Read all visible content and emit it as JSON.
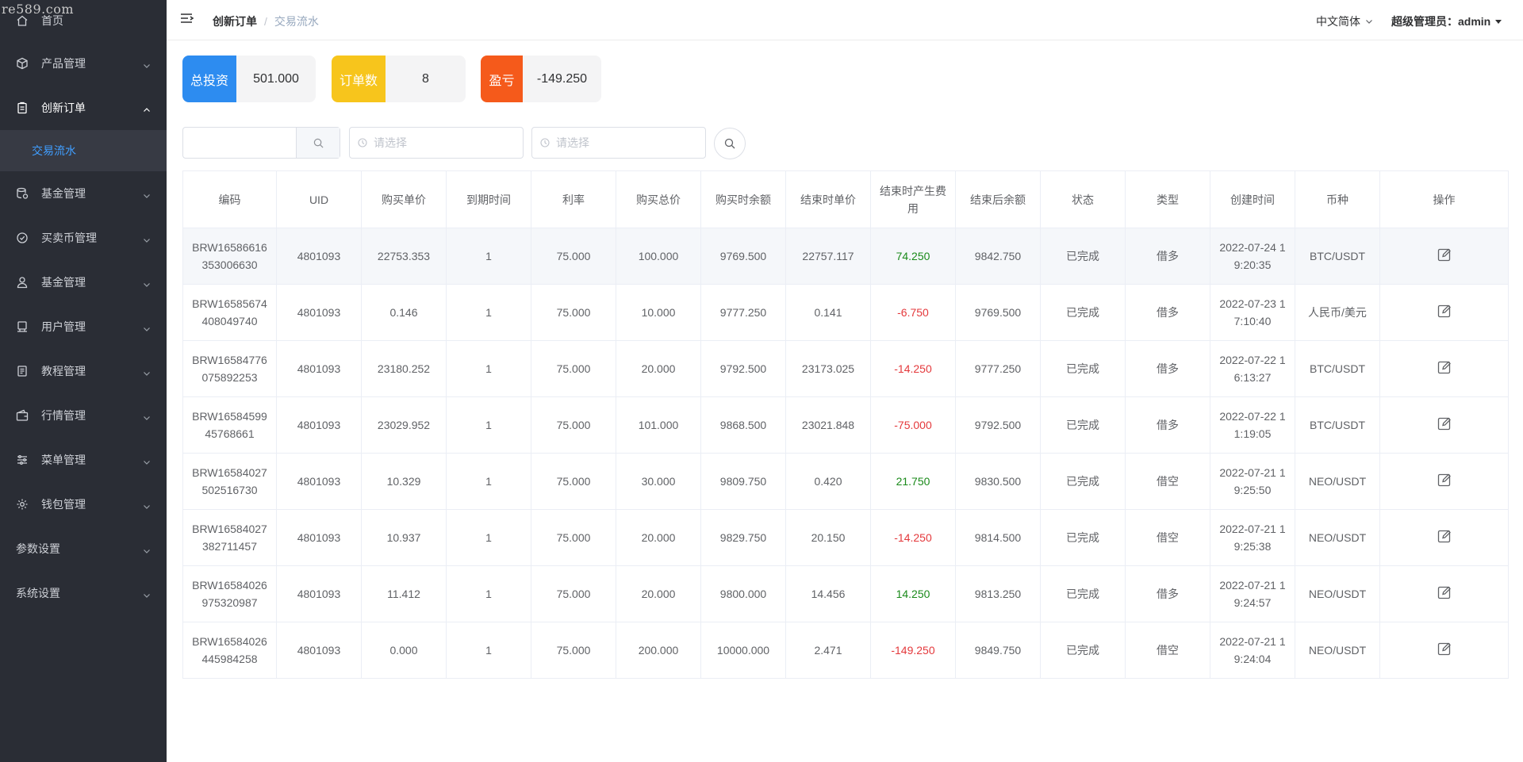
{
  "watermark": "re589.com",
  "sidebar": {
    "items": [
      {
        "label": "首页",
        "icon": "home-icon"
      },
      {
        "label": "产品管理",
        "icon": "cube-icon"
      },
      {
        "label": "创新订单",
        "icon": "clipboard-icon"
      },
      {
        "label": "基金管理",
        "icon": "database-icon"
      },
      {
        "label": "买卖币管理",
        "icon": "check-circle-icon"
      },
      {
        "label": "基金管理",
        "icon": "user-icon"
      },
      {
        "label": "用户管理",
        "icon": "monitor-icon"
      },
      {
        "label": "教程管理",
        "icon": "document-icon"
      },
      {
        "label": "行情管理",
        "icon": "wallet-icon"
      },
      {
        "label": "菜单管理",
        "icon": "sliders-icon"
      },
      {
        "label": "钱包管理",
        "icon": "gear-icon"
      },
      {
        "label": "参数设置",
        "icon": ""
      },
      {
        "label": "系统设置",
        "icon": ""
      }
    ],
    "sub_item": "交易流水"
  },
  "header": {
    "breadcrumb_first": "创新订单",
    "breadcrumb_sep": "/",
    "breadcrumb_current": "交易流水",
    "language": "中文简体",
    "user": "超级管理员：admin"
  },
  "stats": {
    "total_invest_label": "总投资",
    "total_invest_value": "501.000",
    "orders_label": "订单数",
    "orders_value": "8",
    "pnl_label": "盈亏",
    "pnl_value": "-149.250"
  },
  "filters": {
    "search_value": "",
    "date1_placeholder": "请选择",
    "date2_placeholder": "请选择"
  },
  "table": {
    "headers": [
      "编码",
      "UID",
      "购买单价",
      "到期时间",
      "利率",
      "购买总价",
      "购买时余额",
      "结束时单价",
      "结束时产生费用",
      "结束后余额",
      "状态",
      "类型",
      "创建时间",
      "币种",
      "操作"
    ],
    "rows": [
      {
        "code1": "BRW16586616",
        "code2": "353006630",
        "uid": "4801093",
        "buy_price": "22753.353",
        "expire": "1",
        "rate": "75.000",
        "total": "100.000",
        "bal_before": "9769.500",
        "end_price": "22757.117",
        "fee": "74.250",
        "fee_sign": "pos",
        "bal_after": "9842.750",
        "status": "已完成",
        "type": "借多",
        "time1": "2022-07-24 1",
        "time2": "9:20:35",
        "coin": "BTC/USDT"
      },
      {
        "code1": "BRW16585674",
        "code2": "408049740",
        "uid": "4801093",
        "buy_price": "0.146",
        "expire": "1",
        "rate": "75.000",
        "total": "10.000",
        "bal_before": "9777.250",
        "end_price": "0.141",
        "fee": "-6.750",
        "fee_sign": "neg",
        "bal_after": "9769.500",
        "status": "已完成",
        "type": "借多",
        "time1": "2022-07-23 1",
        "time2": "7:10:40",
        "coin": "人民币/美元"
      },
      {
        "code1": "BRW16584776",
        "code2": "075892253",
        "uid": "4801093",
        "buy_price": "23180.252",
        "expire": "1",
        "rate": "75.000",
        "total": "20.000",
        "bal_before": "9792.500",
        "end_price": "23173.025",
        "fee": "-14.250",
        "fee_sign": "neg",
        "bal_after": "9777.250",
        "status": "已完成",
        "type": "借多",
        "time1": "2022-07-22 1",
        "time2": "6:13:27",
        "coin": "BTC/USDT"
      },
      {
        "code1": "BRW16584599",
        "code2": "45768661",
        "uid": "4801093",
        "buy_price": "23029.952",
        "expire": "1",
        "rate": "75.000",
        "total": "101.000",
        "bal_before": "9868.500",
        "end_price": "23021.848",
        "fee": "-75.000",
        "fee_sign": "neg",
        "bal_after": "9792.500",
        "status": "已完成",
        "type": "借多",
        "time1": "2022-07-22 1",
        "time2": "1:19:05",
        "coin": "BTC/USDT"
      },
      {
        "code1": "BRW16584027",
        "code2": "502516730",
        "uid": "4801093",
        "buy_price": "10.329",
        "expire": "1",
        "rate": "75.000",
        "total": "30.000",
        "bal_before": "9809.750",
        "end_price": "0.420",
        "fee": "21.750",
        "fee_sign": "pos",
        "bal_after": "9830.500",
        "status": "已完成",
        "type": "借空",
        "time1": "2022-07-21 1",
        "time2": "9:25:50",
        "coin": "NEO/USDT"
      },
      {
        "code1": "BRW16584027",
        "code2": "382711457",
        "uid": "4801093",
        "buy_price": "10.937",
        "expire": "1",
        "rate": "75.000",
        "total": "20.000",
        "bal_before": "9829.750",
        "end_price": "20.150",
        "fee": "-14.250",
        "fee_sign": "neg",
        "bal_after": "9814.500",
        "status": "已完成",
        "type": "借空",
        "time1": "2022-07-21 1",
        "time2": "9:25:38",
        "coin": "NEO/USDT"
      },
      {
        "code1": "BRW16584026",
        "code2": "975320987",
        "uid": "4801093",
        "buy_price": "11.412",
        "expire": "1",
        "rate": "75.000",
        "total": "20.000",
        "bal_before": "9800.000",
        "end_price": "14.456",
        "fee": "14.250",
        "fee_sign": "pos",
        "bal_after": "9813.250",
        "status": "已完成",
        "type": "借多",
        "time1": "2022-07-21 1",
        "time2": "9:24:57",
        "coin": "NEO/USDT"
      },
      {
        "code1": "BRW16584026",
        "code2": "445984258",
        "uid": "4801093",
        "buy_price": "0.000",
        "expire": "1",
        "rate": "75.000",
        "total": "200.000",
        "bal_before": "10000.000",
        "end_price": "2.471",
        "fee": "-149.250",
        "fee_sign": "neg",
        "bal_after": "9849.750",
        "status": "已完成",
        "type": "借空",
        "time1": "2022-07-21 1",
        "time2": "9:24:04",
        "coin": "NEO/USDT"
      }
    ]
  },
  "colors": {
    "sidebar_bg": "#2a2d35",
    "accent": "#409eff",
    "positive": "#1a8a1a",
    "negative": "#e4393c",
    "stat_blue": "#2d8cf0",
    "stat_yellow": "#f7c51c",
    "stat_orange": "#f55a1b"
  }
}
